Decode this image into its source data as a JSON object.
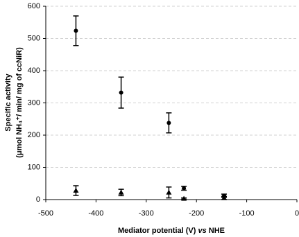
{
  "chart_data": {
    "type": "scatter",
    "xlabel": [
      "Mediator potential (V)",
      "vs",
      "NHE"
    ],
    "ylabel": [
      "Specific activity",
      "(μmol NH₄⁺/ min/ mg of ccNiR)"
    ],
    "x": [
      -440,
      -350,
      -255,
      -225,
      -145
    ],
    "series": [
      {
        "marker": "circle",
        "color": "#000000",
        "values": [
          524,
          332,
          238,
          35,
          12
        ],
        "errors": [
          46,
          48,
          31,
          6,
          5
        ]
      },
      {
        "marker": "triangle",
        "color": "#000000",
        "values": [
          28,
          22,
          22,
          3,
          5
        ],
        "errors": [
          15,
          10,
          17,
          2,
          5
        ]
      }
    ],
    "xlim": [
      -500,
      0
    ],
    "xticks": [
      -500,
      -400,
      -300,
      -200,
      -100,
      0
    ],
    "ylim": [
      0,
      600
    ],
    "yticks": [
      0,
      100,
      200,
      300,
      400,
      500,
      600
    ],
    "grid": true
  }
}
